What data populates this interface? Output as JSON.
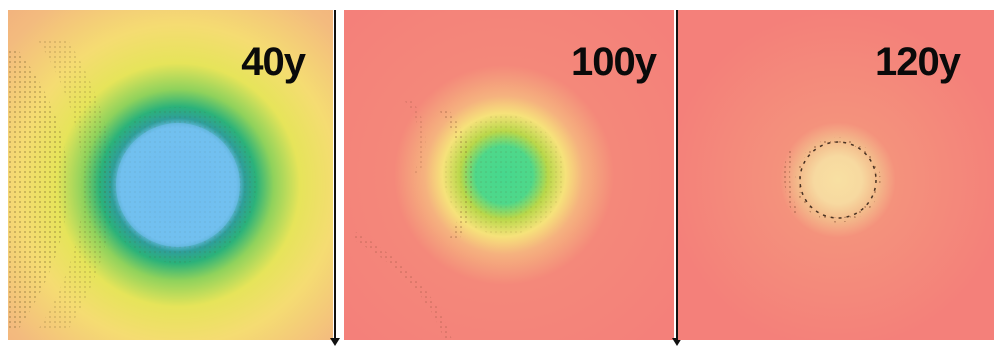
{
  "panels": [
    {
      "label": "40y",
      "background": "#f3a680",
      "core_color": "#72c0f0",
      "ring_color": "#1aa98f"
    },
    {
      "label": "100y",
      "background": "#f4807a",
      "core_color": "#4fd88a",
      "ring_color": "#b9d54a"
    },
    {
      "label": "120y",
      "background": "#f4807a",
      "core_color": "#f7d9a0",
      "ring_color": "#f2b280"
    }
  ]
}
